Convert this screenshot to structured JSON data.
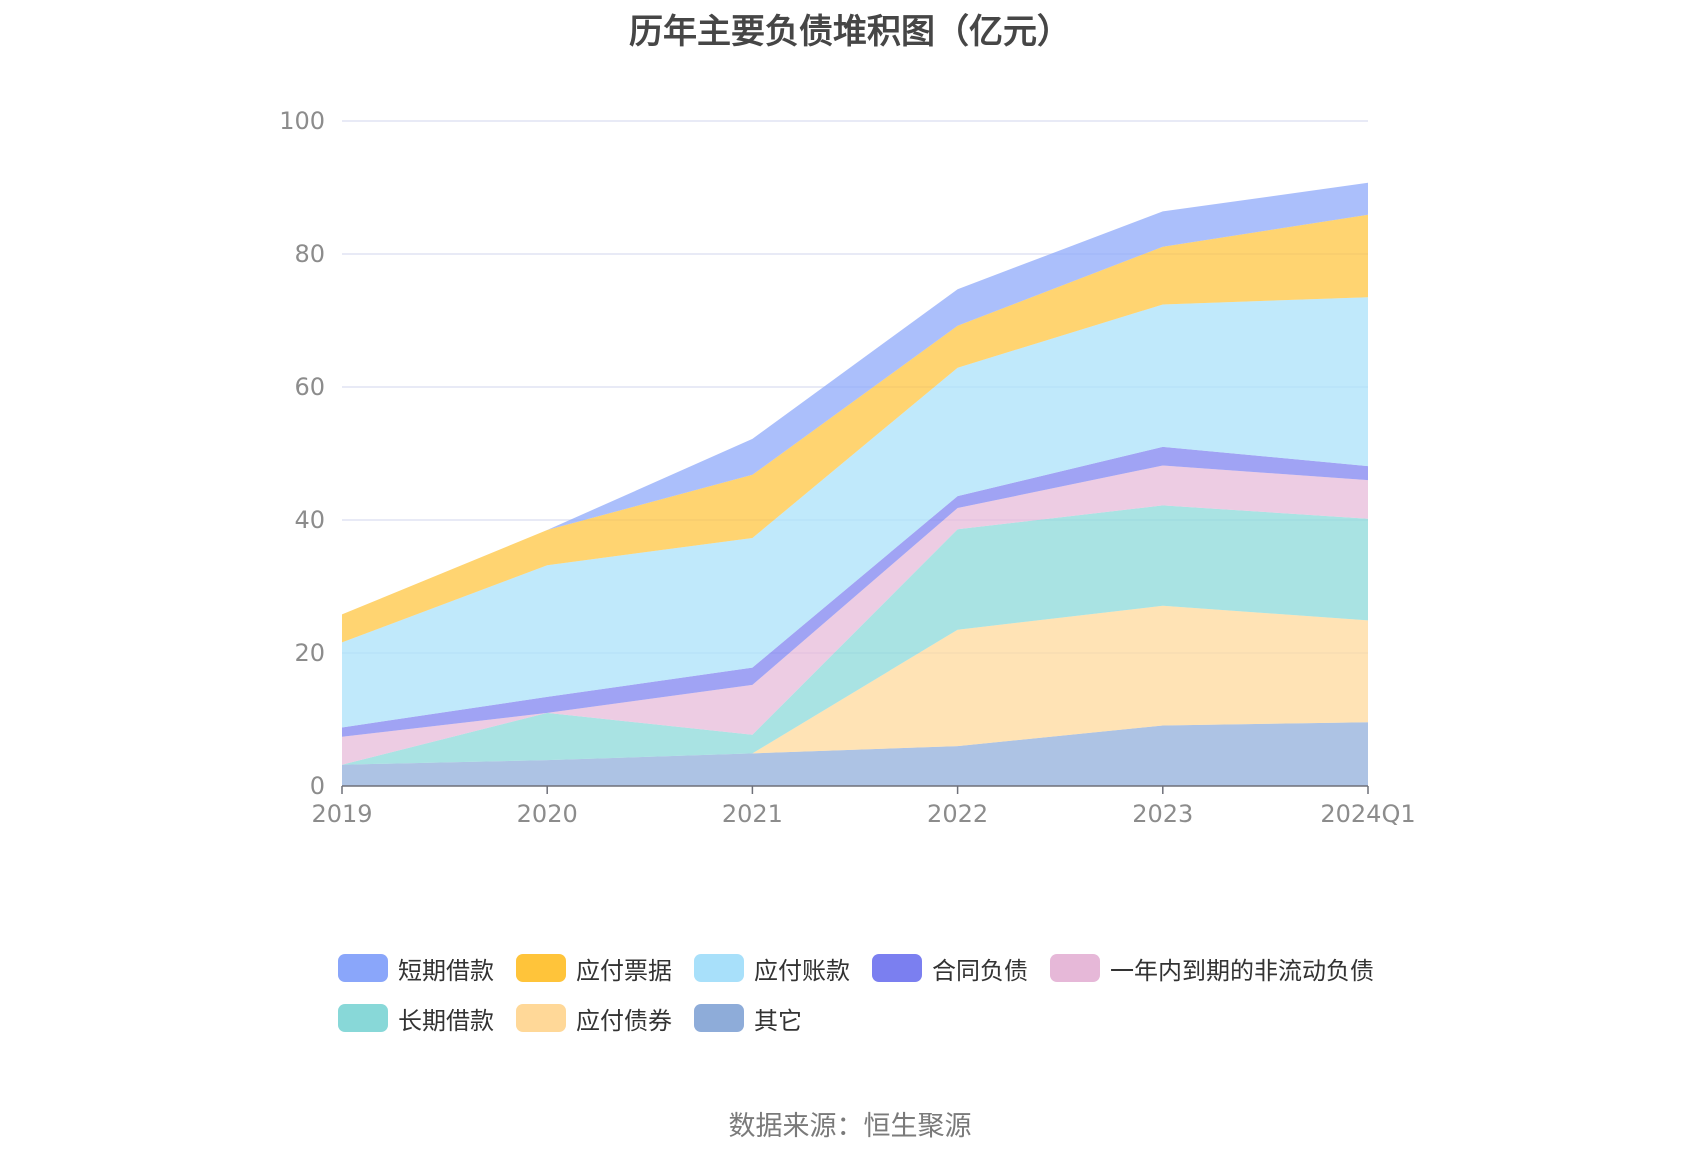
{
  "chart_data": {
    "type": "area",
    "stacked": true,
    "title": "历年主要负债堆积图（亿元）",
    "categories": [
      "2019",
      "2020",
      "2021",
      "2022",
      "2023",
      "2024Q1"
    ],
    "ylim": [
      0,
      100
    ],
    "yticks": [
      0,
      20,
      40,
      60,
      80,
      100
    ],
    "grid": true,
    "legend_position": "bottom",
    "series": [
      {
        "name": "其它",
        "color": "#8eacd9",
        "values": [
          3.2,
          3.9,
          4.9,
          6.0,
          9.1,
          9.6
        ]
      },
      {
        "name": "应付债券",
        "color": "#ffd898",
        "values": [
          0,
          0,
          0,
          17.5,
          18.0,
          15.3
        ]
      },
      {
        "name": "长期借款",
        "color": "#88d8d8",
        "values": [
          0,
          7.1,
          2.8,
          15.1,
          15.1,
          15.3
        ]
      },
      {
        "name": "一年内到期的非流动负债",
        "color": "#e6b8d8",
        "values": [
          4.2,
          0,
          7.5,
          3.2,
          6.0,
          5.8
        ]
      },
      {
        "name": "合同负债",
        "color": "#7b7ff0",
        "values": [
          1.4,
          2.4,
          2.6,
          1.8,
          2.8,
          2.1
        ]
      },
      {
        "name": "应付账款",
        "color": "#a8e0fa",
        "values": [
          12.8,
          19.8,
          19.5,
          19.3,
          21.4,
          25.4
        ]
      },
      {
        "name": "应付票据",
        "color": "#ffc43a",
        "values": [
          4.2,
          5.3,
          9.5,
          6.3,
          8.7,
          12.4
        ]
      },
      {
        "name": "短期借款",
        "color": "#8aa6fa",
        "values": [
          0,
          0,
          5.4,
          5.5,
          5.3,
          4.8
        ]
      }
    ],
    "legend_order": [
      "短期借款",
      "应付票据",
      "应付账款",
      "合同负债",
      "一年内到期的非流动负债",
      "长期借款",
      "应付债券",
      "其它"
    ]
  },
  "source_text": "数据来源：恒生聚源"
}
